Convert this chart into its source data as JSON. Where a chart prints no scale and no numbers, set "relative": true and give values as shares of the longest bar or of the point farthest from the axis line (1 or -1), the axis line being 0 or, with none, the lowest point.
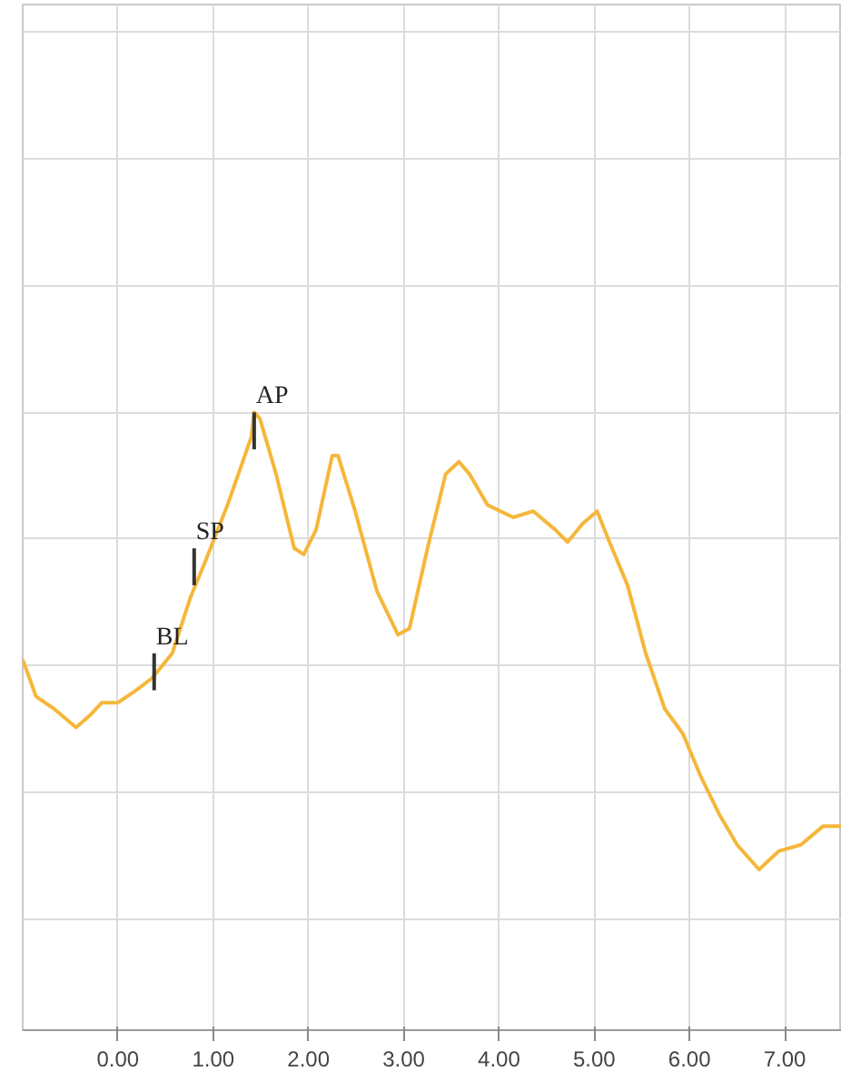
{
  "chart_data": {
    "type": "line",
    "relative": true,
    "grid": true,
    "xlim": [
      -1.0,
      7.6
    ],
    "xticks": [
      {
        "value": 0,
        "label": "0.00"
      },
      {
        "value": 1,
        "label": "1.00"
      },
      {
        "value": 2,
        "label": "2.00"
      },
      {
        "value": 3,
        "label": "3.00"
      },
      {
        "value": 4,
        "label": "4.00"
      },
      {
        "value": 5,
        "label": "5.00"
      },
      {
        "value": 6,
        "label": "6.00"
      },
      {
        "value": 7,
        "label": "7.00"
      }
    ],
    "series": [
      {
        "color": "#f5b73b",
        "x": [
          -1.0,
          -0.86,
          -0.67,
          -0.44,
          -0.29,
          -0.17,
          0,
          0.19,
          0.36,
          0.57,
          0.76,
          0.92,
          1.15,
          1.4,
          1.43,
          1.49,
          1.66,
          1.85,
          1.95,
          2.08,
          2.25,
          2.31,
          2.49,
          2.72,
          2.94,
          3.06,
          3.25,
          3.44,
          3.58,
          3.69,
          3.88,
          4.15,
          4.36,
          4.59,
          4.72,
          4.88,
          5.03,
          5.16,
          5.35,
          5.54,
          5.74,
          5.93,
          6.12,
          6.31,
          6.5,
          6.73,
          6.94,
          7.17,
          7.4,
          7.6
        ],
        "values": [
          0.6,
          0.54,
          0.52,
          0.49,
          0.51,
          0.53,
          0.53,
          0.55,
          0.57,
          0.61,
          0.7,
          0.76,
          0.85,
          0.96,
          1.0,
          0.99,
          0.9,
          0.78,
          0.77,
          0.81,
          0.93,
          0.93,
          0.84,
          0.71,
          0.64,
          0.65,
          0.78,
          0.9,
          0.92,
          0.9,
          0.85,
          0.83,
          0.84,
          0.81,
          0.79,
          0.82,
          0.84,
          0.79,
          0.72,
          0.61,
          0.52,
          0.48,
          0.41,
          0.35,
          0.3,
          0.26,
          0.29,
          0.3,
          0.33,
          0.33
        ]
      }
    ],
    "annotations": [
      {
        "text": "BL",
        "x": 0.38,
        "y": 0.58
      },
      {
        "text": "SP",
        "x": 0.8,
        "y": 0.75
      },
      {
        "text": "AP",
        "x": 1.43,
        "y": 0.97
      }
    ]
  }
}
